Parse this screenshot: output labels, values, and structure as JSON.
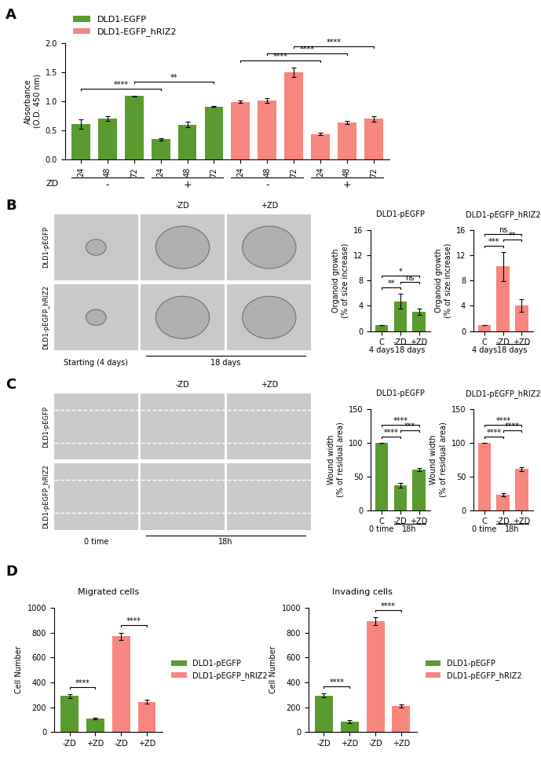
{
  "panel_labels": [
    "A",
    "B",
    "C",
    "D"
  ],
  "chart_data": [
    {
      "type": "bar",
      "y_label": "Absorbance\n(O.D. 450 nm)",
      "categories": [
        "24",
        "48",
        "72",
        "24",
        "48",
        "72",
        "24",
        "48",
        "72",
        "24",
        "48",
        "72"
      ],
      "series": [
        {
          "name": "DLD1-EGFP",
          "color": "#5a9b2f",
          "values": [
            0.61,
            0.7,
            1.09,
            0.35,
            0.6,
            0.91,
            null,
            null,
            null,
            null,
            null,
            null
          ],
          "errors": [
            0.08,
            0.04,
            0.01,
            0.02,
            0.05,
            0.01,
            null,
            null,
            null,
            null,
            null,
            null
          ]
        },
        {
          "name": "DLD1-EGFP_hRIZ2",
          "color": "#f7867f",
          "values": [
            null,
            null,
            null,
            null,
            null,
            null,
            0.99,
            1.01,
            1.5,
            0.44,
            0.64,
            0.7
          ],
          "errors": [
            null,
            null,
            null,
            null,
            null,
            null,
            0.02,
            0.04,
            0.08,
            0.02,
            0.03,
            0.05
          ]
        }
      ],
      "ylim": [
        0,
        2.0
      ],
      "yticks": [
        {
          "value": 0,
          "label": "0.0"
        },
        {
          "value": 0.5,
          "label": "0.5"
        },
        {
          "value": 1.0,
          "label": "1.0"
        },
        {
          "value": 1.5,
          "label": "1.5"
        },
        {
          "value": 2.0,
          "label": "2.0"
        }
      ],
      "x_group_label": "ZD",
      "x_groups": [
        {
          "label": "-",
          "start": 0,
          "end": 2
        },
        {
          "label": "+",
          "start": 3,
          "end": 5
        },
        {
          "label": "-",
          "start": 6,
          "end": 8
        },
        {
          "label": "+",
          "start": 9,
          "end": 11
        }
      ],
      "significance": [
        {
          "from": 0,
          "to": 3,
          "text": "****"
        },
        {
          "from": 2,
          "to": 5,
          "text": "**"
        },
        {
          "from": 6,
          "to": 9,
          "text": "****"
        },
        {
          "from": 7,
          "to": 10,
          "text": "****"
        },
        {
          "from": 8,
          "to": 11,
          "text": "****"
        }
      ],
      "legend": "upper left"
    },
    {
      "type": "bar",
      "title": "DLD1-pEGFP",
      "y_label": "Organoid growth\n(% of size increase)",
      "categories": [
        "C",
        "-ZD",
        "+ZD"
      ],
      "series": [
        {
          "color": "#5a9b2f",
          "values": [
            1,
            4.7,
            3.0
          ],
          "errors": [
            0,
            1.2,
            0.5
          ]
        }
      ],
      "ylim": [
        0,
        16
      ],
      "yticks": [
        0,
        4,
        8,
        12,
        16
      ],
      "x_groups": [
        {
          "label": "4 days",
          "start": 0,
          "end": 0
        },
        {
          "label": "18 days",
          "start": 1,
          "end": 2
        }
      ],
      "significance": [
        {
          "from": 0,
          "to": 1,
          "text": "**"
        },
        {
          "from": 1,
          "to": 2,
          "text": "ns"
        },
        {
          "from": 0,
          "to": 2,
          "text": "*"
        }
      ]
    },
    {
      "type": "bar",
      "title": "DLD1-pEGFP_hRIZ2",
      "y_label": "Organoid growth\n(% of size increase)",
      "categories": [
        "C",
        "-ZD",
        "+ZD"
      ],
      "series": [
        {
          "color": "#f7867f",
          "values": [
            1,
            10.2,
            4.0
          ],
          "errors": [
            0,
            2.3,
            1.0
          ]
        }
      ],
      "ylim": [
        0,
        16
      ],
      "yticks": [
        0,
        4,
        8,
        12,
        16
      ],
      "x_groups": [
        {
          "label": "4 days",
          "start": 0,
          "end": 0
        },
        {
          "label": "18 days",
          "start": 1,
          "end": 2
        }
      ],
      "significance": [
        {
          "from": 0,
          "to": 1,
          "text": "***"
        },
        {
          "from": 1,
          "to": 2,
          "text": "**"
        },
        {
          "from": 0,
          "to": 2,
          "text": "ns"
        }
      ]
    },
    {
      "type": "bar",
      "title": "DLD1-pEGFP",
      "y_label": "Wound width\n(% of residual area)",
      "categories": [
        "C",
        "-ZD",
        "+ZD"
      ],
      "series": [
        {
          "color": "#5a9b2f",
          "values": [
            100,
            37,
            60
          ],
          "errors": [
            0,
            4,
            2
          ]
        }
      ],
      "ylim": [
        0,
        150
      ],
      "yticks": [
        0,
        50,
        100,
        150
      ],
      "x_groups": [
        {
          "label": "0 time",
          "start": 0,
          "end": 0
        },
        {
          "label": "18h",
          "start": 1,
          "end": 2
        }
      ],
      "significance": [
        {
          "from": 0,
          "to": 1,
          "text": "****"
        },
        {
          "from": 1,
          "to": 2,
          "text": "***"
        },
        {
          "from": 0,
          "to": 2,
          "text": "****"
        }
      ]
    },
    {
      "type": "bar",
      "title": "DLD1-pEGFP_hRIZ2",
      "y_label": "Wound width\n(% of residual area)",
      "categories": [
        "C",
        "-ZD",
        "+ZD"
      ],
      "series": [
        {
          "color": "#f7867f",
          "values": [
            100,
            23,
            61
          ],
          "errors": [
            0,
            2,
            3
          ]
        }
      ],
      "ylim": [
        0,
        150
      ],
      "yticks": [
        0,
        50,
        100,
        150
      ],
      "x_groups": [
        {
          "label": "0 time",
          "start": 0,
          "end": 0
        },
        {
          "label": "18h",
          "start": 1,
          "end": 2
        }
      ],
      "significance": [
        {
          "from": 0,
          "to": 1,
          "text": "****"
        },
        {
          "from": 1,
          "to": 2,
          "text": "****"
        },
        {
          "from": 0,
          "to": 2,
          "text": "****"
        }
      ]
    },
    {
      "type": "bar",
      "title": "Migrated cells",
      "y_label": "Cell Number",
      "categories": [
        "-ZD",
        "+ZD",
        "-ZD",
        "+ZD"
      ],
      "series": [
        {
          "name": "DLD1-pEGFP",
          "color": "#5a9b2f",
          "values": [
            290,
            110,
            null,
            null
          ],
          "errors": [
            15,
            8,
            null,
            null
          ]
        },
        {
          "name": "DLD1-pEGFP_hRIZ2",
          "color": "#f7867f",
          "values": [
            null,
            null,
            770,
            245
          ],
          "errors": [
            null,
            null,
            30,
            15
          ]
        }
      ],
      "ylim": [
        0,
        1000
      ],
      "yticks": [
        0,
        200,
        400,
        600,
        800,
        1000
      ],
      "significance": [
        {
          "from": 0,
          "to": 1,
          "text": "****"
        },
        {
          "from": 2,
          "to": 3,
          "text": "****"
        }
      ],
      "legend": "center left"
    },
    {
      "type": "bar",
      "title": "Invading cells",
      "y_label": "Cell Number",
      "categories": [
        "-ZD",
        "+ZD",
        "-ZD",
        "+ZD"
      ],
      "series": [
        {
          "name": "DLD1-pEGFP",
          "color": "#5a9b2f",
          "values": [
            295,
            85,
            null,
            null
          ],
          "errors": [
            15,
            15,
            null,
            null
          ]
        },
        {
          "name": "DLD1-pEGFP_hRIZ2",
          "color": "#f7867f",
          "values": [
            null,
            null,
            890,
            210
          ],
          "errors": [
            null,
            null,
            30,
            12
          ]
        }
      ],
      "ylim": [
        0,
        1000
      ],
      "yticks": [
        0,
        200,
        400,
        600,
        800,
        1000
      ],
      "significance": [
        {
          "from": 0,
          "to": 1,
          "text": "****"
        },
        {
          "from": 2,
          "to": 3,
          "text": "****"
        }
      ],
      "legend": "center left"
    }
  ],
  "image_panels": [
    {
      "row_labels": [
        "DLD1-pEGFP",
        "DLD1-pEGFP_hRIZ2"
      ],
      "column_top_labels": [
        null,
        "-ZD",
        "+ZD"
      ],
      "bottom_labels": [
        {
          "label": "Starting (4 days)",
          "start": 0,
          "end": 0
        },
        {
          "label": "18 days",
          "start": 1,
          "end": 2
        }
      ]
    },
    {
      "row_labels": [
        "DLD1-pEGFP",
        "DLD1-pEGFP_hRIZ2"
      ],
      "column_top_labels": [
        null,
        "-ZD",
        "+ZD"
      ],
      "bottom_labels": [
        {
          "label": "0 time",
          "start": 0,
          "end": 0
        },
        {
          "label": "18h",
          "start": 1,
          "end": 2
        }
      ]
    }
  ]
}
